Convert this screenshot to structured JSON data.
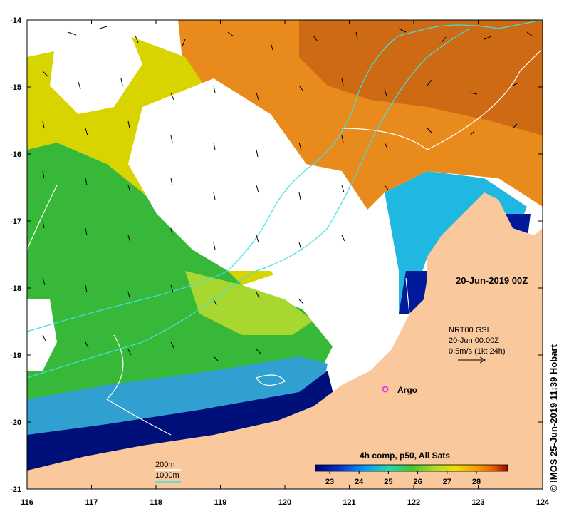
{
  "map": {
    "lon_ticks": [
      "116",
      "117",
      "118",
      "119",
      "120",
      "121",
      "122",
      "123",
      "124"
    ],
    "lat_ticks": [
      "-14",
      "-15",
      "-16",
      "-17",
      "-18",
      "-19",
      "-20",
      "-21"
    ],
    "date_stamp": "20-Jun-2019 00Z",
    "nrt_lines": [
      "NRT00 GSL",
      "20-Jun 00:00Z",
      "0.5m/s (1kt 24h)"
    ],
    "argo_label": "Argo",
    "colorbar_title": "4h comp, p50, All Sats",
    "colorbar_ticks": [
      "23",
      "24",
      "25",
      "26",
      "27",
      "28"
    ],
    "contour_200_label": "200m",
    "contour_1000_label": "1000m",
    "credit": "© IMOS 25-Jun-2019 11:39 Hobart",
    "colors": {
      "land": "#f9c89c",
      "contour_200": "#ffffff",
      "contour_1000": "#40e0e0",
      "argo": "#e040e0"
    }
  }
}
